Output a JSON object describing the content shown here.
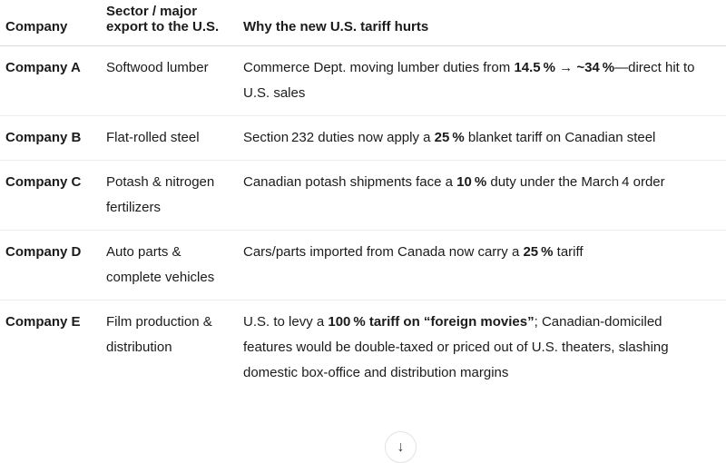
{
  "table": {
    "headers": [
      "Company",
      "Sector / major export to the U.S.",
      "Why the new U.S. tariff hurts"
    ],
    "rows": [
      {
        "company": "Company A",
        "sector": "Softwood lumber",
        "why": [
          {
            "t": "Commerce Dept. moving lumber duties from ",
            "b": false
          },
          {
            "t": "14.5 %",
            "b": true
          },
          {
            "t": " → ",
            "b": false
          },
          {
            "t": "~34 %",
            "b": true
          },
          {
            "t": "—direct hit to U.S. sales",
            "b": false
          }
        ]
      },
      {
        "company": "Company B",
        "sector": "Flat-rolled steel",
        "why": [
          {
            "t": "Section 232 duties now apply a ",
            "b": false
          },
          {
            "t": "25 %",
            "b": true
          },
          {
            "t": " blanket tariff on Canadian steel",
            "b": false
          }
        ]
      },
      {
        "company": "Company C",
        "sector": "Potash & nitrogen fertilizers",
        "why": [
          {
            "t": "Canadian potash shipments face a ",
            "b": false
          },
          {
            "t": "10 %",
            "b": true
          },
          {
            "t": " duty under the March 4 order",
            "b": false
          }
        ]
      },
      {
        "company": "Company D",
        "sector": "Auto parts & complete vehicles",
        "why": [
          {
            "t": "Cars/parts imported from Canada now carry a ",
            "b": false
          },
          {
            "t": "25 %",
            "b": true
          },
          {
            "t": " tariff",
            "b": false
          }
        ]
      },
      {
        "company": "Company E",
        "sector": "Film production & distribution",
        "why": [
          {
            "t": "U.S. to levy a ",
            "b": false
          },
          {
            "t": "100 % tariff on “foreign movies”",
            "b": true
          },
          {
            "t": "; Canadian-domiciled features would be double-taxed or priced out of U.S. theaters, slashing domestic box-office and distribution margins",
            "b": false
          }
        ]
      }
    ]
  },
  "scroll_button": {
    "icon": "arrow-down",
    "glyph": "↓"
  },
  "colors": {
    "text": "#1b1b1b",
    "header_divider": "#d9d9d9",
    "row_divider": "#ececec",
    "button_border": "#e3e3e3"
  }
}
